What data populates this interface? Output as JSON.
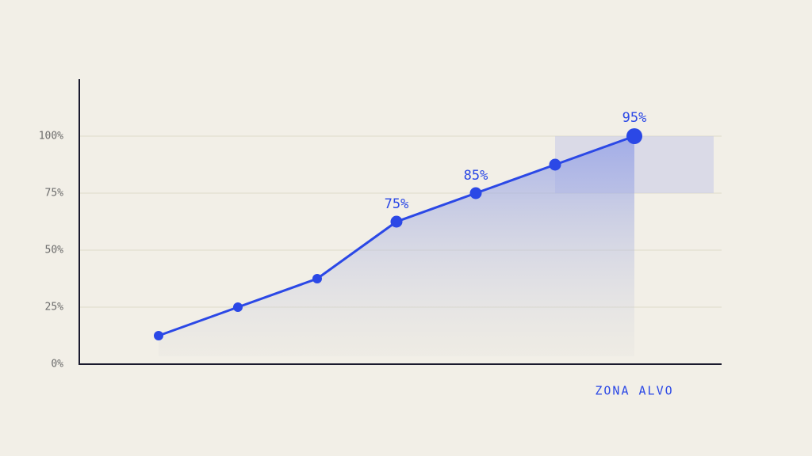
{
  "chart_data": {
    "type": "line",
    "categories": [
      null,
      null,
      null,
      null,
      null,
      null,
      null
    ],
    "values": [
      12.5,
      25,
      37.5,
      62.5,
      75,
      87.5,
      100
    ],
    "color": "#2b48e6",
    "ylim": [
      0,
      125
    ],
    "yticks": [
      {
        "value": 0,
        "label": "0%"
      },
      {
        "value": 25,
        "label": "25%"
      },
      {
        "value": 50,
        "label": "50%"
      },
      {
        "value": 75,
        "label": "75%"
      },
      {
        "value": 100,
        "label": "100%"
      }
    ],
    "grid": true,
    "annotations": [
      "75%",
      "85%",
      "95%"
    ],
    "target_zone": {
      "label": "ZONA ALVO",
      "range": [
        75,
        100
      ]
    }
  }
}
